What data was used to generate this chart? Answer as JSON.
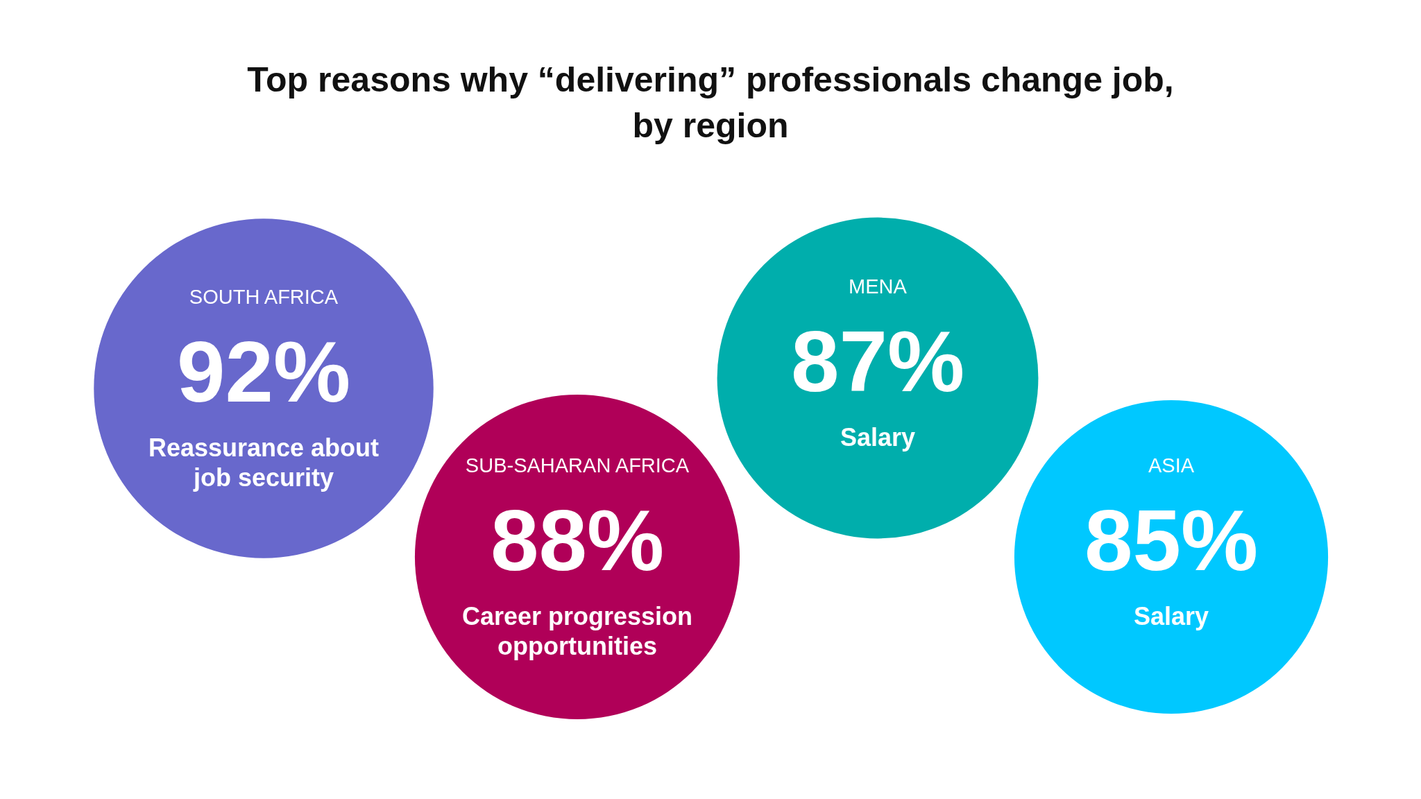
{
  "chart_data": {
    "type": "other",
    "title": "Top reasons why “delivering” professionals change job, by region",
    "categories": [
      "SOUTH AFRICA",
      "SUB-SAHARAN AFRICA",
      "MENA",
      "ASIA"
    ],
    "values": [
      92,
      88,
      87,
      85
    ],
    "value_labels": [
      "92%",
      "88%",
      "87%",
      "85%"
    ],
    "colors": [
      "#6868cc",
      "#b00058",
      "#00aeac",
      "#00c8ff"
    ],
    "annotations": [
      {
        "text": "Reassurance about job security",
        "x": "SOUTH AFRICA"
      },
      {
        "text": "Career progression opportunities",
        "x": "SUB-SAHARAN AFRICA"
      },
      {
        "text": "Salary",
        "x": "MENA"
      },
      {
        "text": "Salary",
        "x": "ASIA"
      }
    ]
  }
}
